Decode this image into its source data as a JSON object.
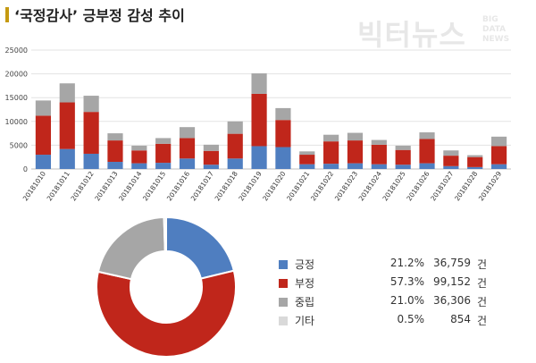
{
  "header": {
    "title": "‘국정감사’ 긍부정 감성 추이",
    "accent_color": "#c59a11",
    "logo_main": "빅터뉴스",
    "logo_sub": [
      "BIG",
      "DATA",
      "NEWS"
    ]
  },
  "chart_data": [
    {
      "type": "bar",
      "stacked": true,
      "categories": [
        "20181010",
        "20181011",
        "20181012",
        "20181013",
        "20181014",
        "20181015",
        "20181016",
        "20181017",
        "20181018",
        "20181019",
        "20181020",
        "20181021",
        "20181022",
        "20181023",
        "20181024",
        "20181025",
        "20181026",
        "20181027",
        "20181028",
        "20181029"
      ],
      "series": [
        {
          "key": "pos",
          "color": "#4f7ec0",
          "values": [
            3000,
            4200,
            3200,
            1500,
            1200,
            1300,
            2200,
            900,
            2200,
            4800,
            4600,
            1000,
            1100,
            1200,
            1000,
            900,
            1200,
            600,
            400,
            1000
          ]
        },
        {
          "key": "neg",
          "color": "#c0261b",
          "values": [
            8200,
            9800,
            8800,
            4500,
            2700,
            4000,
            4300,
            2900,
            5200,
            11000,
            5700,
            2000,
            4700,
            4800,
            4100,
            3100,
            5100,
            2200,
            2100,
            3800
          ]
        },
        {
          "key": "neu",
          "color": "#a6a6a6",
          "values": [
            3200,
            4000,
            3400,
            1500,
            1000,
            1200,
            2300,
            1300,
            2600,
            4300,
            2500,
            700,
            1400,
            1600,
            1000,
            900,
            1400,
            1100,
            400,
            2000
          ]
        }
      ],
      "ylim": [
        0,
        25000
      ],
      "yticks": [
        0,
        5000,
        10000,
        15000,
        20000,
        25000
      ],
      "grid": true
    },
    {
      "type": "pie",
      "donut": true,
      "slices": [
        {
          "label": "긍정",
          "percent": "21.2%",
          "count": "36,759",
          "unit": "건",
          "value": 36759,
          "color": "#4f7ec0"
        },
        {
          "label": "부정",
          "percent": "57.3%",
          "count": "99,152",
          "unit": "건",
          "value": 99152,
          "color": "#c0261b"
        },
        {
          "label": "중립",
          "percent": "21.0%",
          "count": "36,306",
          "unit": "건",
          "value": 36306,
          "color": "#a6a6a6"
        },
        {
          "label": "기타",
          "percent": "0.5%",
          "count": "854",
          "unit": "건",
          "value": 854,
          "color": "#d9d9d9"
        }
      ],
      "legend_position": "right"
    }
  ]
}
